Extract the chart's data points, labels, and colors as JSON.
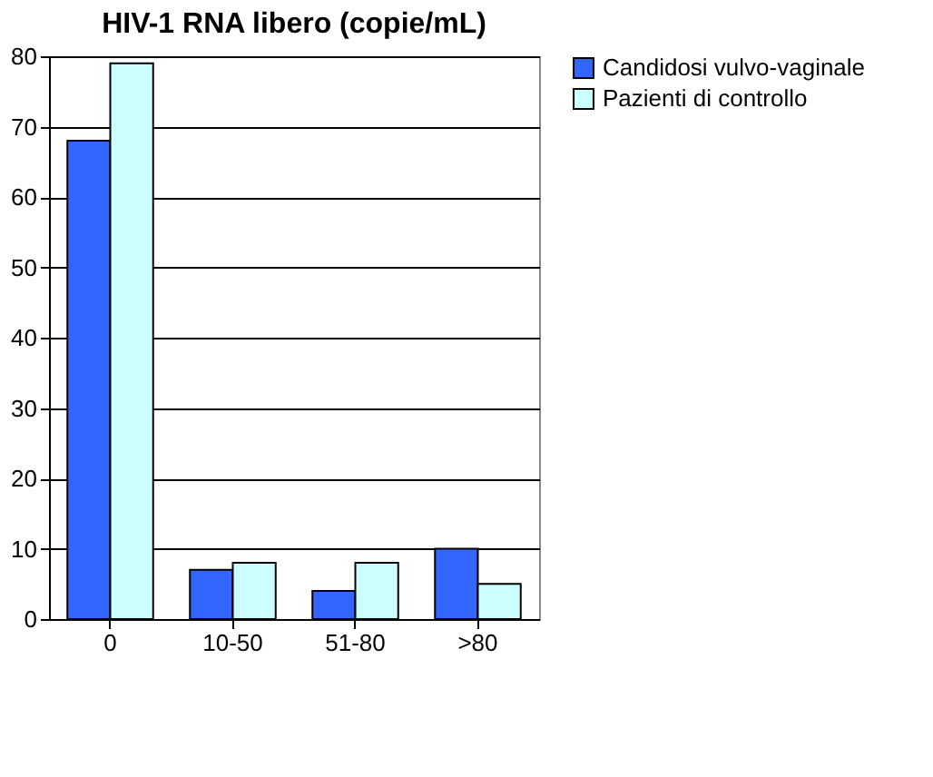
{
  "chart_data": {
    "type": "bar",
    "title": "HIV-1 RNA libero (copie/mL)",
    "categories": [
      "0",
      "10-50",
      "51-80",
      ">80"
    ],
    "series": [
      {
        "name": "Candidosi vulvo-vaginale",
        "color": "#3366ff",
        "values": [
          68,
          7,
          4,
          10
        ]
      },
      {
        "name": "Pazienti di controllo",
        "color": "#ccffff",
        "values": [
          79,
          8,
          8,
          5
        ]
      }
    ],
    "ylim": [
      0,
      80
    ],
    "yticks": [
      0,
      10,
      20,
      30,
      40,
      50,
      60,
      70,
      80
    ],
    "grid": "y",
    "legend": "right"
  }
}
